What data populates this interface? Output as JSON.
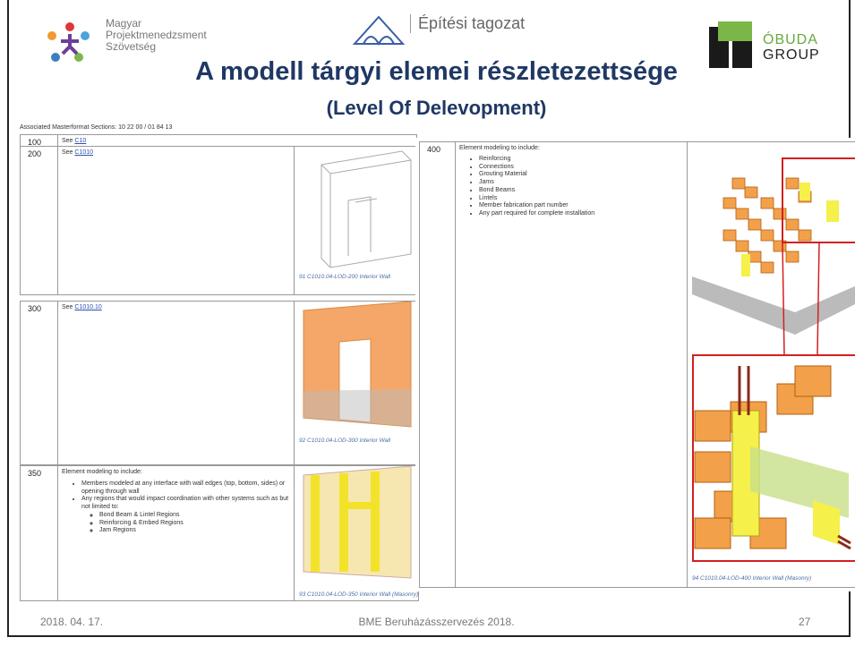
{
  "header": {
    "logo_left": [
      "Magyar",
      "Projektmenedzsment",
      "Szövetség"
    ],
    "logo_center": "Építési tagozat",
    "logo_right": [
      "ÓBUDA",
      "GROUP"
    ],
    "title": "A modell tárgyi elemei részletezettsége",
    "subtitle": "(Level Of Delevopment)"
  },
  "table": {
    "caption": "Associated Masterformat Sections: 10 22 00 / 01 84 13",
    "rows": [
      {
        "level": "100",
        "text": "See",
        "link": "C10"
      },
      {
        "level": "200",
        "text": "See",
        "link": "C1010",
        "figure": "91 C1010.04-LOD-200 Interior Wall"
      },
      {
        "level": "300",
        "text": "See",
        "link": "C1010.10",
        "figure": "92 C1010.04-LOD-300 Interior Wall"
      },
      {
        "level": "350",
        "text": "Element modeling to include:",
        "items": [
          {
            "text": "Members modeled at any interface with wall edges (top, bottom, sides) or opening through wall",
            "subitems": []
          },
          {
            "text": "Any regions that would impact coordination with other systems such as but not limited to:",
            "subitems": [
              "Bond Beam & Lintel Regions",
              "Reinforcing & Embed Regions",
              "Jam Regions"
            ]
          }
        ],
        "figure": "93 C1010.04-LOD-350 Interior Wall (Masonry)"
      }
    ]
  },
  "overlay": {
    "level": "400",
    "text": "Element modeling to include:",
    "items": [
      "Reinforcing",
      "Connections",
      "Grouting Material",
      "Jams",
      "Bond Beams",
      "Lintels",
      "Member fabrication part number",
      "Any part required for complete installation"
    ],
    "figure": "94 C1010.04-LOD-400 Interior Wall (Masonry)"
  },
  "footer": {
    "date": "2018. 04. 17.",
    "center": "BME Beruházásszervezés 2018.",
    "page": "27"
  }
}
